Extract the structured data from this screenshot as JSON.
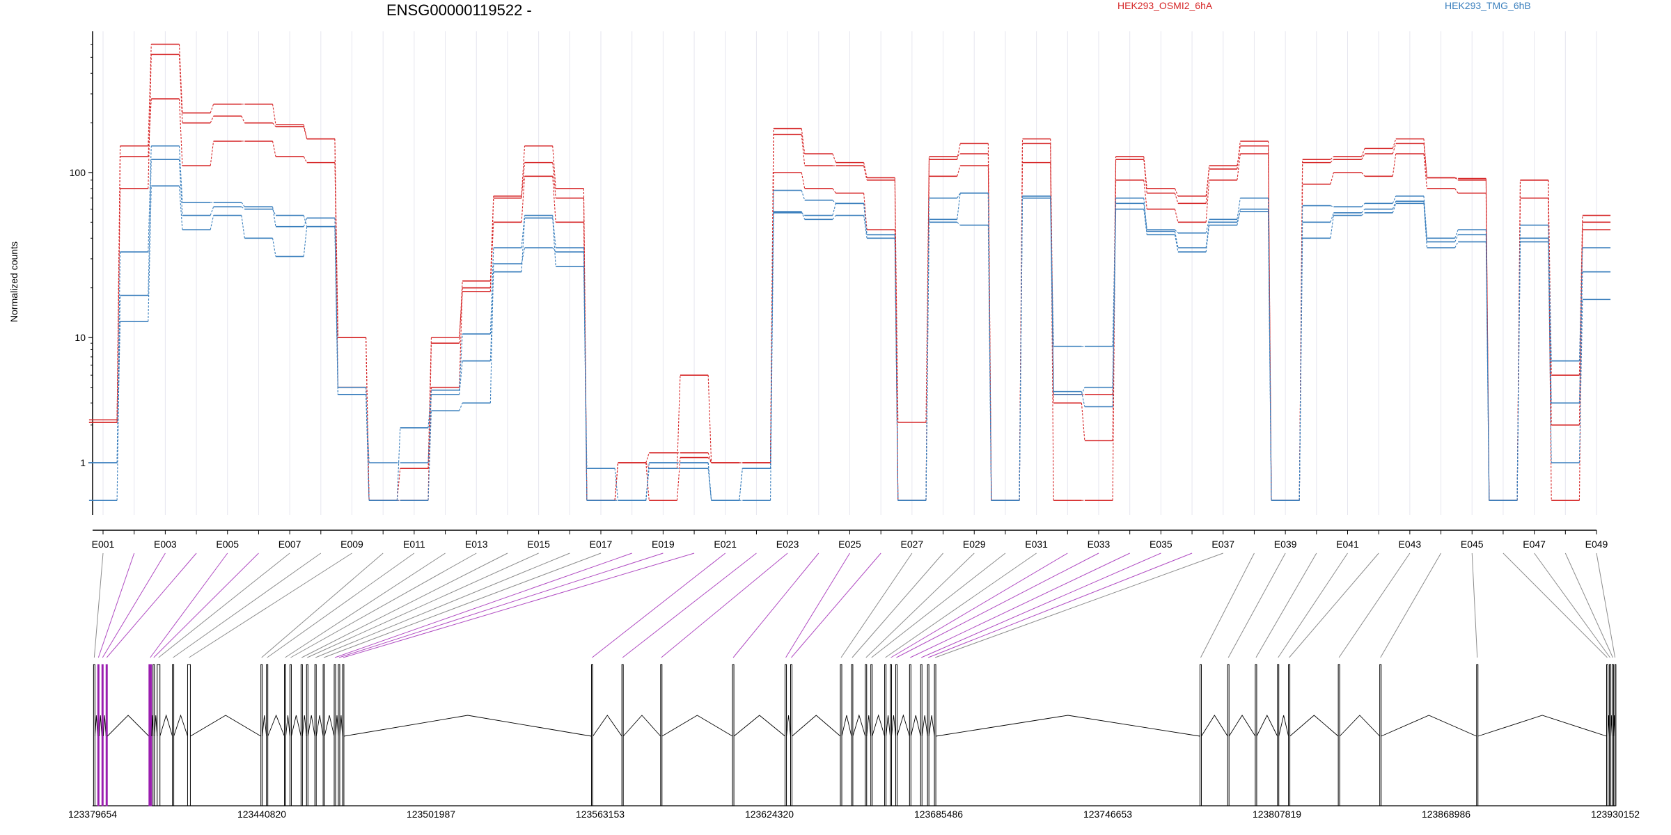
{
  "chart_data": {
    "type": "line",
    "title": "ENSG00000119522 -",
    "ylabel": "Normalized counts",
    "yscale": "log",
    "ylim": [
      0.5,
      700
    ],
    "yticks": [
      1,
      10,
      100
    ],
    "ytick_labels": [
      "1",
      "10",
      "100"
    ],
    "categories": [
      "E001",
      "E002",
      "E003",
      "E004",
      "E005",
      "E006",
      "E007",
      "E008",
      "E009",
      "E010",
      "E011",
      "E012",
      "E013",
      "E014",
      "E015",
      "E016",
      "E017",
      "E018",
      "E019",
      "E020",
      "E021",
      "E022",
      "E023",
      "E024",
      "E025",
      "E026",
      "E027",
      "E028",
      "E029",
      "E030",
      "E031",
      "E032",
      "E033",
      "E034",
      "E035",
      "E036",
      "E037",
      "E038",
      "E039",
      "E040",
      "E041",
      "E042",
      "E043",
      "E044",
      "E045",
      "E046",
      "E047",
      "E048",
      "E049"
    ],
    "x_tick_labels": [
      "E001",
      "E003",
      "E005",
      "E007",
      "E009",
      "E011",
      "E013",
      "E015",
      "E017",
      "E019",
      "E021",
      "E023",
      "E025",
      "E027",
      "E029",
      "E031",
      "E033",
      "E035",
      "E037",
      "E039",
      "E041",
      "E043",
      "E045",
      "E047",
      "E049"
    ],
    "legend": [
      {
        "name": "HEK293_OSMI2_6hA",
        "color": "#d62728"
      },
      {
        "name": "HEK293_TMG_6hB",
        "color": "#3a7fbd"
      }
    ],
    "series": [
      {
        "group": "HEK293_OSMI2_6hA",
        "color": "#d62728",
        "values": [
          2.2,
          80,
          520,
          200,
          220,
          200,
          190,
          160,
          4,
          0.5,
          0.5,
          4,
          20,
          50,
          95,
          50,
          0.5,
          1,
          0.5,
          1.1,
          1,
          1,
          100,
          80,
          75,
          45,
          0.5,
          95,
          110,
          0.5,
          115,
          3,
          1.5,
          90,
          60,
          50,
          90,
          130,
          0.5,
          85,
          100,
          95,
          130,
          80,
          75,
          0.5,
          70,
          0.5,
          45
        ]
      },
      {
        "group": "HEK293_OSMI2_6hA",
        "color": "#d62728",
        "values": [
          2.1,
          125,
          280,
          110,
          155,
          155,
          125,
          115,
          10,
          0.5,
          0.9,
          10,
          19,
          70,
          115,
          70,
          0.5,
          1,
          1.2,
          1.2,
          1,
          1,
          170,
          110,
          110,
          90,
          0.5,
          125,
          130,
          0.5,
          150,
          0.5,
          0.5,
          120,
          75,
          65,
          110,
          145,
          0.5,
          115,
          120,
          130,
          150,
          93,
          90,
          0.5,
          90,
          2,
          50
        ]
      },
      {
        "group": "HEK293_OSMI2_6hA",
        "color": "#d62728",
        "values": [
          2.1,
          145,
          600,
          230,
          260,
          260,
          195,
          160,
          10,
          0.5,
          0.5,
          9,
          22,
          72,
          145,
          80,
          0.5,
          1,
          0.9,
          5,
          1,
          1,
          185,
          130,
          115,
          93,
          2.1,
          120,
          150,
          0.5,
          160,
          3.5,
          3.5,
          125,
          80,
          72,
          105,
          155,
          0.5,
          120,
          125,
          140,
          160,
          93,
          92,
          0.5,
          90,
          5,
          55
        ]
      },
      {
        "group": "HEK293_TMG_6hB",
        "color": "#3a7fbd",
        "values": [
          0.5,
          18,
          120,
          55,
          62,
          60,
          55,
          47,
          3.5,
          1,
          1,
          3.5,
          6.5,
          25,
          53,
          27,
          0.9,
          0.5,
          1,
          1,
          0.5,
          0.9,
          58,
          52,
          55,
          40,
          0.5,
          50,
          48,
          0.5,
          70,
          3.7,
          2.8,
          60,
          42,
          33,
          48,
          60,
          0.5,
          40,
          55,
          57,
          65,
          35,
          38,
          0.5,
          38,
          1,
          17
        ]
      },
      {
        "group": "HEK293_TMG_6hB",
        "color": "#3a7fbd",
        "values": [
          1,
          12.5,
          83,
          45,
          55,
          40,
          31,
          47,
          3.5,
          0.5,
          0.5,
          2.6,
          3,
          28,
          35,
          33,
          0.5,
          0.5,
          0.9,
          0.9,
          0.5,
          0.5,
          57,
          55,
          65,
          42,
          0.5,
          52,
          75,
          0.5,
          72,
          8.5,
          8.5,
          65,
          44,
          35,
          50,
          58,
          0.5,
          50,
          57,
          60,
          67,
          38,
          42,
          0.5,
          40,
          3,
          25
        ]
      },
      {
        "group": "HEK293_TMG_6hB",
        "color": "#3a7fbd",
        "values": [
          1,
          33,
          145,
          66,
          66,
          62,
          47,
          53,
          4,
          0.5,
          1.9,
          3.8,
          10.5,
          35,
          55,
          35,
          0.5,
          0.5,
          1,
          1,
          0.5,
          0.9,
          78,
          68,
          65,
          42,
          0.5,
          70,
          75,
          0.5,
          72,
          3.5,
          4,
          70,
          45,
          43,
          52,
          70,
          0.5,
          63,
          62,
          65,
          72,
          40,
          45,
          0.5,
          48,
          6.5,
          35
        ]
      }
    ],
    "genome_axis_labels": [
      "123379654",
      "123440820",
      "123501987",
      "123563153",
      "123624320",
      "123685486",
      "123746653",
      "123807819",
      "123868986",
      "123930152"
    ],
    "genome_start": 123379654,
    "genome_end": 123930152,
    "exon_starts": [
      123380000,
      123381500,
      123383000,
      123384500,
      123400000,
      123401500,
      123403000,
      123408500,
      123414000,
      123440500,
      123442500,
      123449000,
      123451000,
      123455000,
      123457000,
      123460000,
      123463000,
      123467000,
      123468500,
      123470000,
      123560000,
      123571000,
      123585000,
      123611000,
      123630000,
      123632000,
      123650000,
      123654000,
      123659000,
      123661000,
      123666000,
      123668000,
      123670000,
      123675000,
      123679000,
      123681500,
      123684000,
      123780000,
      123790000,
      123800000,
      123808000,
      123812000,
      123830000,
      123845000,
      123880000,
      123927000,
      123928000,
      123929000,
      123930000
    ],
    "exon_ends": [
      123380500,
      123382000,
      123383500,
      123385000,
      123401000,
      123402000,
      123404000,
      123409000,
      123415000,
      123441000,
      123443000,
      123449500,
      123451500,
      123455500,
      123457500,
      123460500,
      123463500,
      123467500,
      123469000,
      123470500,
      123560500,
      123571500,
      123585500,
      123611500,
      123630500,
      123632500,
      123650500,
      123654500,
      123659500,
      123661500,
      123666500,
      123668500,
      123670500,
      123675500,
      123679500,
      123682000,
      123684500,
      123780500,
      123790500,
      123800500,
      123808500,
      123812500,
      123830500,
      123845500,
      123880500,
      123927500,
      123928500,
      123929500,
      123930100
    ],
    "highlighted_exons": [
      "E002",
      "E003",
      "E004",
      "E005",
      "E006",
      "E018",
      "E019",
      "E020",
      "E021",
      "E022",
      "E023",
      "E024",
      "E025",
      "E026",
      "E032",
      "E033",
      "E034",
      "E035",
      "E036"
    ]
  }
}
